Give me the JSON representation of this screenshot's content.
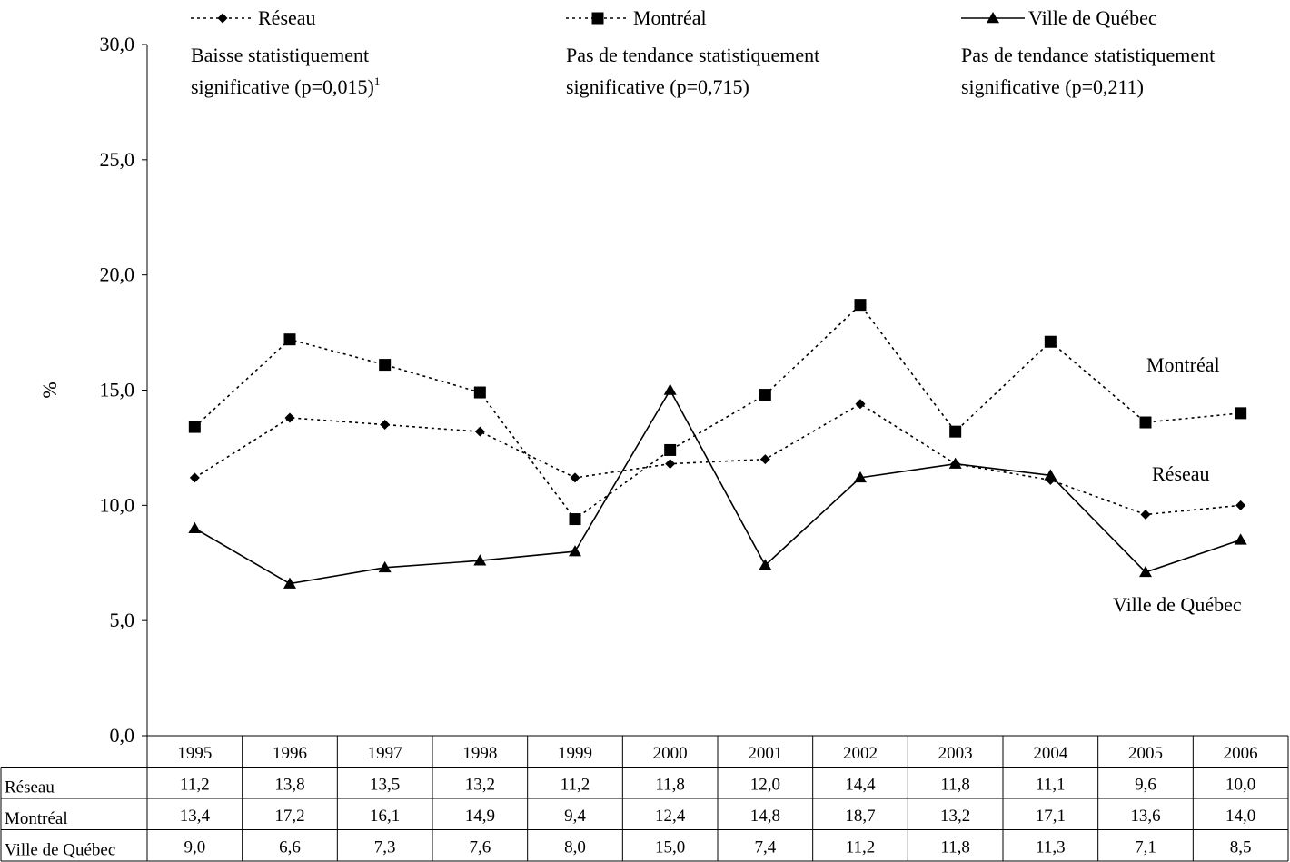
{
  "chart_data": {
    "type": "line",
    "ylabel": "%",
    "ylim": [
      0,
      30
    ],
    "yticks": [
      "0,0",
      "5,0",
      "10,0",
      "15,0",
      "20,0",
      "25,0",
      "30,0"
    ],
    "yticks_values": [
      0,
      5,
      10,
      15,
      20,
      25,
      30
    ],
    "categories": [
      "1995",
      "1996",
      "1997",
      "1998",
      "1999",
      "2000",
      "2001",
      "2002",
      "2003",
      "2004",
      "2005",
      "2006"
    ],
    "series": [
      {
        "name": "Réseau",
        "style": "dotted",
        "marker": "diamond",
        "values": [
          11.2,
          13.8,
          13.5,
          13.2,
          11.2,
          11.8,
          12.0,
          14.4,
          11.8,
          11.1,
          9.6,
          10.0
        ],
        "table_values": [
          "11,2",
          "13,8",
          "13,5",
          "13,2",
          "11,2",
          "11,8",
          "12,0",
          "14,4",
          "11,8",
          "11,1",
          "9,6",
          "10,0"
        ],
        "trend_line1": "Baisse statistiquement",
        "trend_line2": "significative (p=0,015)",
        "trend_sup": "1",
        "end_label": "Réseau"
      },
      {
        "name": "Montréal",
        "style": "dotted",
        "marker": "square",
        "values": [
          13.4,
          17.2,
          16.1,
          14.9,
          9.4,
          12.4,
          14.8,
          18.7,
          13.2,
          17.1,
          13.6,
          14.0
        ],
        "table_values": [
          "13,4",
          "17,2",
          "16,1",
          "14,9",
          "9,4",
          "12,4",
          "14,8",
          "18,7",
          "13,2",
          "17,1",
          "13,6",
          "14,0"
        ],
        "trend_line1": "Pas de tendance statistiquement",
        "trend_line2": "significative (p=0,715)",
        "end_label": "Montréal"
      },
      {
        "name": "Ville de Québec",
        "style": "solid",
        "marker": "triangle",
        "values": [
          9.0,
          6.6,
          7.3,
          7.6,
          8.0,
          15.0,
          7.4,
          11.2,
          11.8,
          11.3,
          7.1,
          8.5
        ],
        "table_values": [
          "9,0",
          "6,6",
          "7,3",
          "7,6",
          "8,0",
          "15,0",
          "7,4",
          "11,2",
          "11,8",
          "11,3",
          "7,1",
          "8,5"
        ],
        "trend_line1": "Pas de tendance statistiquement",
        "trend_line2": "significative (p=0,211)",
        "end_label": "Ville de Québec"
      }
    ],
    "grid": false,
    "legend": "top"
  }
}
